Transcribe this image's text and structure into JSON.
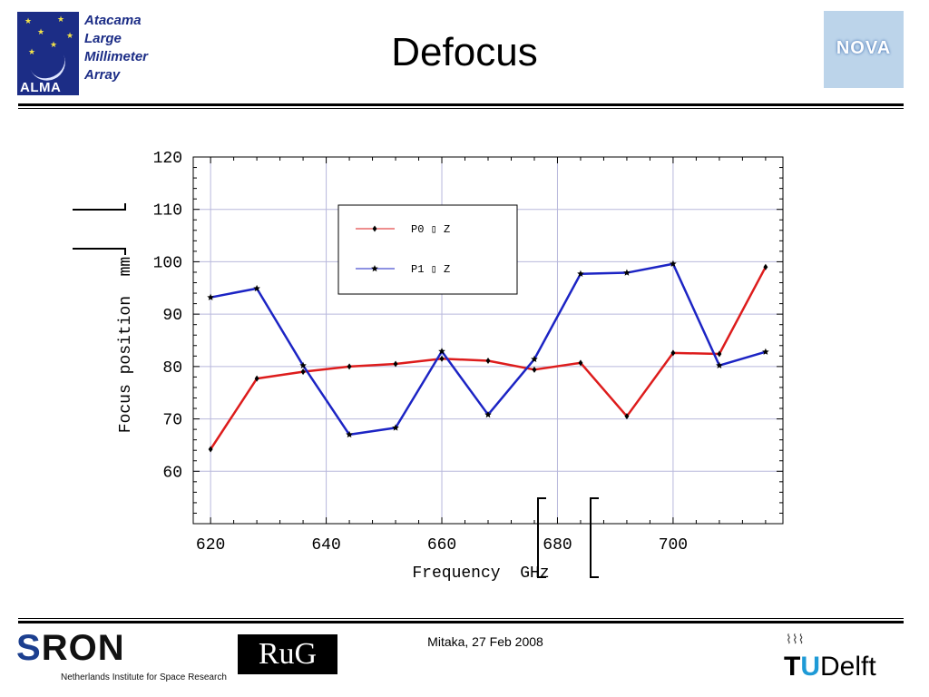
{
  "header": {
    "title": "Defocus",
    "alma_logo_text": "ALMA",
    "alma_name_lines": [
      "Atacama",
      "Large",
      "Millimeter",
      "Array"
    ],
    "nova_logo_text": "NOVA"
  },
  "chart_data": {
    "type": "line",
    "xlabel": "Frequency  GHz",
    "ylabel": "Focus position  mm",
    "xlim": [
      617,
      719
    ],
    "ylim": [
      50,
      120
    ],
    "xticks": [
      620,
      640,
      660,
      680,
      700
    ],
    "yticks": [
      60,
      70,
      80,
      90,
      100,
      110,
      120
    ],
    "grid": true,
    "legend_position": "top-center",
    "series": [
      {
        "name": "P0 ▯ Z",
        "color": "#dd1c1c",
        "marker": "diamond",
        "x": [
          620,
          628,
          636,
          644,
          652,
          660,
          668,
          676,
          684,
          692,
          700,
          708,
          716
        ],
        "y": [
          64.2,
          77.7,
          79.0,
          80.0,
          80.5,
          81.5,
          81.1,
          79.4,
          80.7,
          70.5,
          82.6,
          82.4,
          99.0
        ]
      },
      {
        "name": "P1 ▯ Z",
        "color": "#1c24c4",
        "marker": "star",
        "x": [
          620,
          628,
          636,
          644,
          652,
          660,
          668,
          676,
          684,
          692,
          700,
          708,
          716
        ],
        "y": [
          93.2,
          94.9,
          80.2,
          67.0,
          68.3,
          82.9,
          70.8,
          81.4,
          97.7,
          97.9,
          99.6,
          80.2,
          82.8
        ]
      }
    ]
  },
  "footer": {
    "date": "Mitaka, 27 Feb 2008",
    "sron_s": "S",
    "sron_rest": "RON",
    "sron_subtitle": "Netherlands Institute for Space Research",
    "rug_text": "RuG",
    "tud_t": "T",
    "tud_u": "U",
    "tud_delft": "Delft"
  },
  "colors": {
    "alma_blue": "#1c2d86",
    "grid": "#b8b8dc"
  }
}
